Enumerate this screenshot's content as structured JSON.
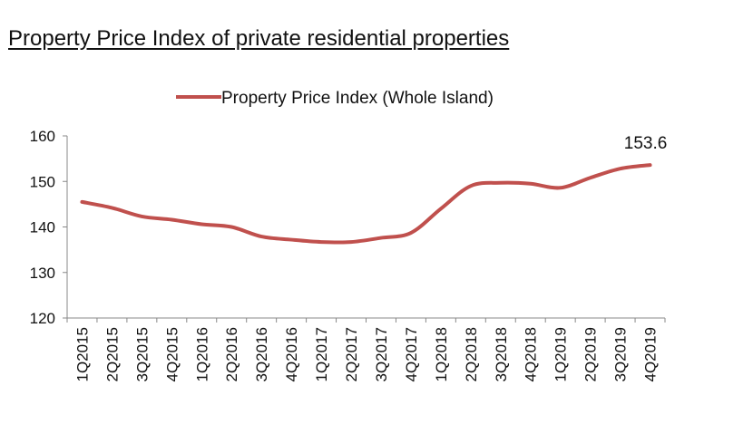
{
  "page_title": "Property Price Index of private residential properties",
  "chart_data": {
    "type": "line",
    "title": "Property Price Index of private residential properties",
    "xlabel": "",
    "ylabel": "",
    "ylim": [
      120,
      160
    ],
    "yticks": [
      120,
      130,
      140,
      150,
      160
    ],
    "grid": false,
    "legend": "top-center",
    "categories": [
      "1Q2015",
      "2Q2015",
      "3Q2015",
      "4Q2015",
      "1Q2016",
      "2Q2016",
      "3Q2016",
      "4Q2016",
      "1Q2017",
      "2Q2017",
      "3Q2017",
      "4Q2017",
      "1Q2018",
      "2Q2018",
      "3Q2018",
      "4Q2018",
      "1Q2019",
      "2Q2019",
      "3Q2019",
      "4Q2019"
    ],
    "series": [
      {
        "name": "Property Price Index (Whole Island)",
        "color": "#c0504d",
        "values": [
          145.5,
          144.2,
          142.3,
          141.6,
          140.6,
          140.0,
          137.9,
          137.2,
          136.7,
          136.7,
          137.6,
          138.7,
          144.0,
          149.0,
          149.7,
          149.5,
          148.6,
          150.8,
          152.8,
          153.6
        ]
      }
    ],
    "annotations": [
      {
        "category": "4Q2019",
        "text": "153.6"
      }
    ]
  }
}
